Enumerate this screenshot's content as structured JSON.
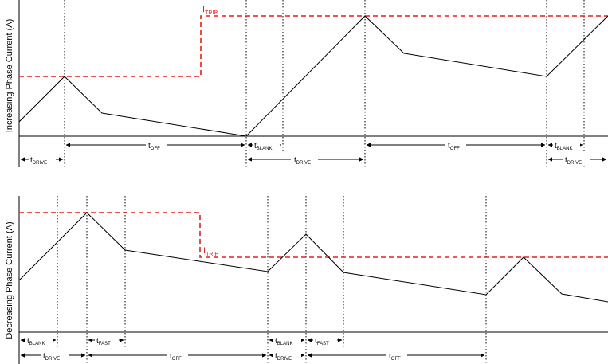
{
  "colors": {
    "trip": "#e0201c",
    "line": "#000000"
  },
  "top": {
    "ylabel": "Increasing Phase Current (A)",
    "itrip": {
      "main": "I",
      "sub": "TRIP"
    },
    "labels": {
      "drive1": {
        "main": "t",
        "sub": "DRIVE"
      },
      "off1": {
        "main": "t",
        "sub": "OFF"
      },
      "blank1": {
        "main": "t",
        "sub": "BLANK"
      },
      "drive2": {
        "main": "t",
        "sub": "DRIVE"
      },
      "off2": {
        "main": "t",
        "sub": "OFF"
      },
      "blank2": {
        "main": "t",
        "sub": "BLANK"
      },
      "drive3": {
        "main": "t",
        "sub": "DRIVE"
      }
    }
  },
  "bottom": {
    "ylabel": "Decreasing Phase Current (A)",
    "itrip": {
      "main": "I",
      "sub": "TRIP"
    },
    "labels": {
      "blank1": {
        "main": "t",
        "sub": "BLANK"
      },
      "fast1": {
        "main": "t",
        "sub": "FAST"
      },
      "drive1": {
        "main": "t",
        "sub": "DRIVE"
      },
      "off1": {
        "main": "t",
        "sub": "OFF"
      },
      "blank2": {
        "main": "t",
        "sub": "BLANK"
      },
      "fast2": {
        "main": "t",
        "sub": "FAST"
      },
      "drive2": {
        "main": "t",
        "sub": "DRIVE"
      },
      "off2": {
        "main": "t",
        "sub": "OFF"
      }
    }
  }
}
